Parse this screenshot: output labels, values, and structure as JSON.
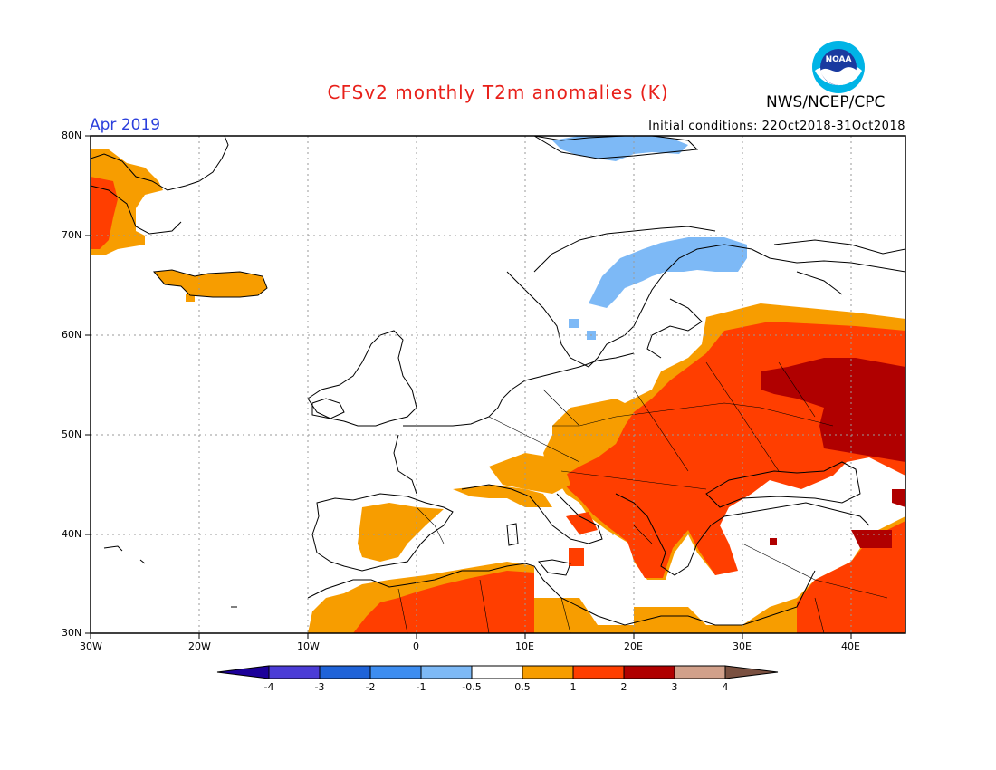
{
  "title": "CFSv2 monthly T2m anomalies (K)",
  "organization": "NWS/NCEP/CPC",
  "logo_text": "NOAA",
  "month": "Apr 2019",
  "initial_conditions": "Initial conditions: 22Oct2018-31Oct2018",
  "lat_labels": [
    "80N",
    "70N",
    "60N",
    "50N",
    "40N",
    "30N"
  ],
  "lon_labels": [
    "30W",
    "20W",
    "10W",
    "0",
    "10E",
    "20E",
    "30E",
    "40E"
  ],
  "colorbar": {
    "labels": [
      "-4",
      "-3",
      "-2",
      "-1",
      "-0.5",
      "0.5",
      "1",
      "2",
      "3",
      "4"
    ],
    "colors": [
      "#1c0099",
      "#4b3cd6",
      "#1f63d8",
      "#3d8df0",
      "#7db9f6",
      "#ffffff",
      "#f79d00",
      "#ff3e00",
      "#b00000",
      "#d1a08a",
      "#7a5040"
    ]
  },
  "colors": {
    "title": "#e8201a",
    "month": "#2b3fdc",
    "orange": "#f79d00",
    "red": "#ff3e00",
    "darkred": "#b00000",
    "lightblue": "#7db9f6"
  }
}
